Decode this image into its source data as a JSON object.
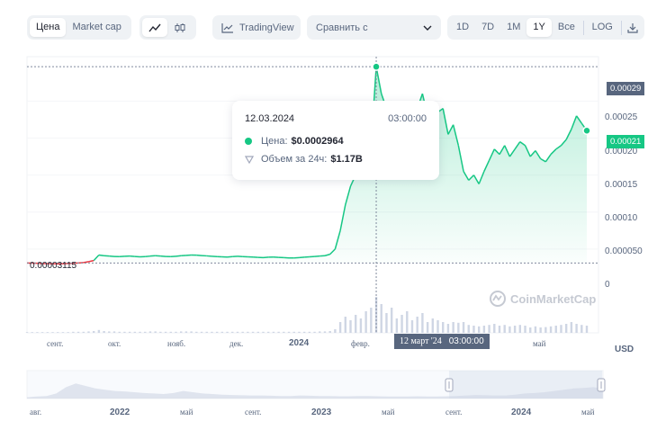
{
  "toolbar": {
    "view_tabs": [
      "Цена",
      "Market cap"
    ],
    "tradingview_label": "TradingView",
    "compare_placeholder": "Сравнить с",
    "ranges": [
      "1D",
      "7D",
      "1M",
      "1Y",
      "Все"
    ],
    "active_range": "1Y",
    "log_label": "LOG"
  },
  "tooltip": {
    "date": "12.03.2024",
    "time": "03:00:00",
    "price_label": "Цена:",
    "price_value": "$0.0002964",
    "volume_label": "Объем за 24ч:",
    "volume_value": "$1.17B"
  },
  "chart_data": {
    "type": "line",
    "y_ticks": [
      "0.00025",
      "0.00020",
      "0.00015",
      "0.00010",
      "0.000050",
      "0"
    ],
    "x_ticks": [
      "сент.",
      "окт.",
      "нояб.",
      "дек.",
      "2024",
      "февр.",
      "май"
    ],
    "currency_label": "USD",
    "baseline_label": "0.00003115",
    "high_tag": "0.00029",
    "current_tag": "0.00021",
    "crosshair_date_label": "12 март '24",
    "crosshair_time_label": "03:00:00",
    "watermark": "CoinMarketCap",
    "baseline": 3.115e-05,
    "ylim": [
      0,
      0.00031
    ],
    "series": [
      {
        "values": [
          3.12e-05,
          3.1e-05,
          3.08e-05,
          3.05e-05,
          3.04e-05,
          3.02e-05,
          3.01e-05,
          3.03e-05,
          3.06e-05,
          3.08e-05,
          3.12e-05,
          3.18e-05,
          3.3e-05,
          3.45e-05,
          4.2e-05,
          4.1e-05,
          4.05e-05,
          4e-05,
          3.98e-05,
          4.02e-05,
          4.05e-05,
          4e-05,
          3.95e-05,
          3.98e-05,
          4.05e-05,
          4.1e-05,
          4.06e-05,
          4e-05,
          3.98e-05,
          4.02e-05,
          4.1e-05,
          4.15e-05,
          4.2e-05,
          4.18e-05,
          4.12e-05,
          4.08e-05,
          4.02e-05,
          3.98e-05,
          3.95e-05,
          3.92e-05,
          3.98e-05,
          4.02e-05,
          3.98e-05,
          3.95e-05,
          3.92e-05,
          3.88e-05,
          3.85e-05,
          3.9e-05,
          3.92e-05,
          3.88e-05,
          3.84e-05,
          3.8e-05,
          3.8e-05,
          3.84e-05,
          3.9e-05,
          3.95e-05,
          4e-05,
          4.05e-05,
          4.1e-05,
          4.3e-05,
          5e-05,
          7.5e-05,
          0.00011,
          0.000135,
          0.00015,
          0.00016,
          0.000175,
          0.00019,
          0.0002964,
          0.00026,
          0.00024,
          0.00025,
          0.00021,
          0.000235,
          0.00025,
          0.000215,
          0.00024,
          0.00026,
          0.00023,
          0.000248,
          0.000235,
          0.00024,
          0.000205,
          0.000218,
          0.00019,
          0.000155,
          0.000143,
          0.00015,
          0.000138,
          0.000155,
          0.00017,
          0.000185,
          0.000178,
          0.00019,
          0.000175,
          0.000185,
          0.000195,
          0.00019,
          0.000175,
          0.000183,
          0.000172,
          0.000168,
          0.000178,
          0.000185,
          0.00019,
          0.000198,
          0.000212,
          0.00023,
          0.00022,
          0.00021
        ]
      }
    ],
    "volume": [
      0.02,
      0.02,
      0.02,
      0.02,
      0.02,
      0.02,
      0.02,
      0.02,
      0.02,
      0.03,
      0.03,
      0.03,
      0.04,
      0.05,
      0.08,
      0.05,
      0.04,
      0.04,
      0.03,
      0.03,
      0.03,
      0.03,
      0.03,
      0.03,
      0.04,
      0.04,
      0.03,
      0.03,
      0.03,
      0.03,
      0.04,
      0.04,
      0.04,
      0.03,
      0.03,
      0.03,
      0.03,
      0.03,
      0.03,
      0.03,
      0.03,
      0.03,
      0.03,
      0.03,
      0.03,
      0.03,
      0.03,
      0.03,
      0.03,
      0.03,
      0.03,
      0.03,
      0.03,
      0.03,
      0.03,
      0.03,
      0.03,
      0.04,
      0.04,
      0.05,
      0.1,
      0.3,
      0.45,
      0.35,
      0.5,
      0.4,
      0.6,
      0.7,
      1.0,
      0.8,
      0.55,
      0.7,
      0.4,
      0.5,
      0.6,
      0.35,
      0.45,
      0.55,
      0.3,
      0.4,
      0.35,
      0.3,
      0.25,
      0.3,
      0.28,
      0.3,
      0.22,
      0.2,
      0.18,
      0.2,
      0.22,
      0.25,
      0.2,
      0.22,
      0.18,
      0.2,
      0.22,
      0.2,
      0.15,
      0.18,
      0.15,
      0.16,
      0.18,
      0.2,
      0.22,
      0.25,
      0.3,
      0.25,
      0.22,
      0.2
    ],
    "navigator_ticks": [
      "авг.",
      "2022",
      "май",
      "сент.",
      "2023",
      "май",
      "сент.",
      "2024",
      "май"
    ]
  },
  "colors": {
    "up": "#16c784",
    "down": "#ea3943",
    "fill": "#16c784",
    "tag_dark": "#58667e"
  }
}
